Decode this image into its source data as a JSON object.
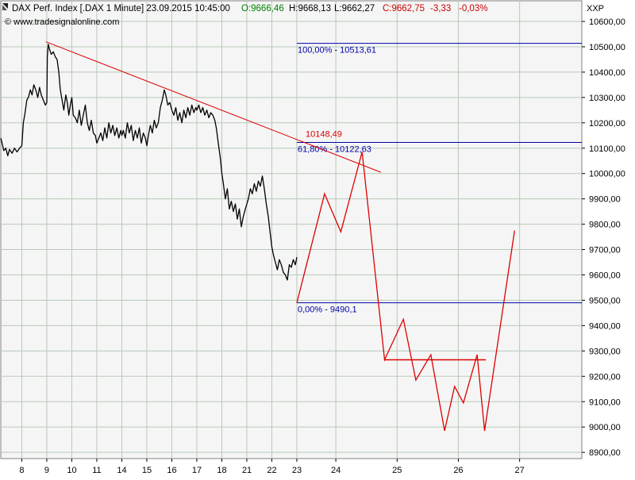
{
  "header": {
    "icon": "triangle-expand-icon",
    "name": "DAX Perf. Index [.DAX  1 Minute] 23.09.2015 10:45:00",
    "open": "O:9666,46",
    "high": "H:9668,13",
    "low": "L:9662,27",
    "close": "C:9662,75",
    "change": "-3,33",
    "change_pct": "-0,03%",
    "symbol": "XXP",
    "watermark": "© www.tradesignalonline.com"
  },
  "colors": {
    "panel_bg": "#f5f5f5",
    "grid": "#b9c9b9",
    "price": "#000000",
    "trendline": "#dd0000",
    "fib": "#0000aa",
    "header_green": "#008000",
    "header_red": "#cc0000"
  },
  "chart_data": {
    "type": "line",
    "title": "DAX Perf. Index [.DAX  1 Minute]",
    "ylim": [
      8830,
      10620
    ],
    "y_ticks": [
      "10600,00",
      "10500,00",
      "10400,00",
      "10300,00",
      "10200,00",
      "10100,00",
      "10000,00",
      "9900,00",
      "9800,00",
      "9700,00",
      "9600,00",
      "9500,00",
      "9400,00",
      "9300,00",
      "9200,00",
      "9100,00",
      "9000,00",
      "8900,00"
    ],
    "x_ticks": [
      {
        "label": "8",
        "slot": 0.84
      },
      {
        "label": "9",
        "slot": 1.84
      },
      {
        "label": "10",
        "slot": 2.84
      },
      {
        "label": "11",
        "slot": 3.84
      },
      {
        "label": "14",
        "slot": 4.84
      },
      {
        "label": "15",
        "slot": 5.84
      },
      {
        "label": "16",
        "slot": 6.84
      },
      {
        "label": "17",
        "slot": 7.84
      },
      {
        "label": "18",
        "slot": 8.84
      },
      {
        "label": "21",
        "slot": 9.84
      },
      {
        "label": "22",
        "slot": 10.84
      },
      {
        "label": "23",
        "slot": 11.84
      },
      {
        "label": "24",
        "slot": 13.4
      },
      {
        "label": "25",
        "slot": 15.85
      },
      {
        "label": "26",
        "slot": 18.3
      },
      {
        "label": "27",
        "slot": 20.75
      }
    ],
    "price_series": {
      "name": "DAX",
      "points": [
        [
          0.0,
          10140
        ],
        [
          0.05,
          10120
        ],
        [
          0.12,
          10090
        ],
        [
          0.2,
          10100
        ],
        [
          0.28,
          10070
        ],
        [
          0.35,
          10095
        ],
        [
          0.45,
          10080
        ],
        [
          0.55,
          10100
        ],
        [
          0.65,
          10085
        ],
        [
          0.75,
          10100
        ],
        [
          0.84,
          10110
        ],
        [
          0.9,
          10200
        ],
        [
          0.97,
          10240
        ],
        [
          1.04,
          10290
        ],
        [
          1.1,
          10300
        ],
        [
          1.18,
          10330
        ],
        [
          1.25,
          10310
        ],
        [
          1.32,
          10350
        ],
        [
          1.4,
          10330
        ],
        [
          1.48,
          10300
        ],
        [
          1.55,
          10340
        ],
        [
          1.62,
          10310
        ],
        [
          1.7,
          10290
        ],
        [
          1.78,
          10270
        ],
        [
          1.84,
          10280
        ],
        [
          1.86,
          10460
        ],
        [
          1.9,
          10510
        ],
        [
          1.95,
          10490
        ],
        [
          2.02,
          10470
        ],
        [
          2.1,
          10480
        ],
        [
          2.18,
          10460
        ],
        [
          2.25,
          10450
        ],
        [
          2.32,
          10400
        ],
        [
          2.38,
          10330
        ],
        [
          2.45,
          10290
        ],
        [
          2.52,
          10250
        ],
        [
          2.6,
          10310
        ],
        [
          2.66,
          10280
        ],
        [
          2.72,
          10230
        ],
        [
          2.78,
          10270
        ],
        [
          2.84,
          10300
        ],
        [
          2.9,
          10230
        ],
        [
          2.98,
          10220
        ],
        [
          3.06,
          10200
        ],
        [
          3.14,
          10250
        ],
        [
          3.22,
          10190
        ],
        [
          3.3,
          10230
        ],
        [
          3.38,
          10270
        ],
        [
          3.46,
          10200
        ],
        [
          3.54,
          10170
        ],
        [
          3.62,
          10210
        ],
        [
          3.7,
          10160
        ],
        [
          3.78,
          10150
        ],
        [
          3.84,
          10120
        ],
        [
          3.92,
          10140
        ],
        [
          4.0,
          10160
        ],
        [
          4.08,
          10130
        ],
        [
          4.16,
          10180
        ],
        [
          4.24,
          10140
        ],
        [
          4.32,
          10200
        ],
        [
          4.4,
          10160
        ],
        [
          4.48,
          10190
        ],
        [
          4.56,
          10150
        ],
        [
          4.64,
          10180
        ],
        [
          4.72,
          10140
        ],
        [
          4.8,
          10170
        ],
        [
          4.84,
          10150
        ],
        [
          4.9,
          10170
        ],
        [
          4.98,
          10140
        ],
        [
          5.06,
          10200
        ],
        [
          5.14,
          10160
        ],
        [
          5.22,
          10190
        ],
        [
          5.3,
          10130
        ],
        [
          5.38,
          10170
        ],
        [
          5.46,
          10140
        ],
        [
          5.54,
          10180
        ],
        [
          5.62,
          10120
        ],
        [
          5.7,
          10160
        ],
        [
          5.78,
          10140
        ],
        [
          5.84,
          10110
        ],
        [
          5.9,
          10150
        ],
        [
          5.98,
          10190
        ],
        [
          6.06,
          10160
        ],
        [
          6.14,
          10210
        ],
        [
          6.22,
          10180
        ],
        [
          6.3,
          10200
        ],
        [
          6.38,
          10260
        ],
        [
          6.46,
          10290
        ],
        [
          6.54,
          10330
        ],
        [
          6.6,
          10310
        ],
        [
          6.68,
          10270
        ],
        [
          6.76,
          10280
        ],
        [
          6.84,
          10250
        ],
        [
          6.92,
          10230
        ],
        [
          7.0,
          10260
        ],
        [
          7.08,
          10210
        ],
        [
          7.16,
          10240
        ],
        [
          7.24,
          10200
        ],
        [
          7.32,
          10250
        ],
        [
          7.4,
          10220
        ],
        [
          7.48,
          10260
        ],
        [
          7.56,
          10230
        ],
        [
          7.64,
          10270
        ],
        [
          7.72,
          10240
        ],
        [
          7.8,
          10260
        ],
        [
          7.84,
          10250
        ],
        [
          7.92,
          10270
        ],
        [
          8.0,
          10240
        ],
        [
          8.08,
          10260
        ],
        [
          8.16,
          10230
        ],
        [
          8.24,
          10250
        ],
        [
          8.32,
          10220
        ],
        [
          8.4,
          10240
        ],
        [
          8.48,
          10230
        ],
        [
          8.56,
          10210
        ],
        [
          8.62,
          10180
        ],
        [
          8.7,
          10120
        ],
        [
          8.78,
          10060
        ],
        [
          8.84,
          10000
        ],
        [
          8.9,
          9960
        ],
        [
          8.98,
          9900
        ],
        [
          9.06,
          9940
        ],
        [
          9.14,
          9860
        ],
        [
          9.22,
          9890
        ],
        [
          9.3,
          9850
        ],
        [
          9.38,
          9880
        ],
        [
          9.46,
          9820
        ],
        [
          9.54,
          9860
        ],
        [
          9.62,
          9790
        ],
        [
          9.7,
          9830
        ],
        [
          9.78,
          9860
        ],
        [
          9.84,
          9880
        ],
        [
          9.9,
          9900
        ],
        [
          9.98,
          9940
        ],
        [
          10.06,
          9920
        ],
        [
          10.14,
          9960
        ],
        [
          10.22,
          9930
        ],
        [
          10.3,
          9970
        ],
        [
          10.38,
          9950
        ],
        [
          10.46,
          9990
        ],
        [
          10.54,
          9940
        ],
        [
          10.62,
          9880
        ],
        [
          10.7,
          9830
        ],
        [
          10.78,
          9760
        ],
        [
          10.84,
          9710
        ],
        [
          10.9,
          9680
        ],
        [
          10.98,
          9650
        ],
        [
          11.06,
          9620
        ],
        [
          11.14,
          9660
        ],
        [
          11.22,
          9640
        ],
        [
          11.3,
          9610
        ],
        [
          11.38,
          9600
        ],
        [
          11.46,
          9580
        ],
        [
          11.54,
          9640
        ],
        [
          11.62,
          9630
        ],
        [
          11.7,
          9660
        ],
        [
          11.78,
          9640
        ],
        [
          11.84,
          9670
        ]
      ]
    },
    "forecast_series": {
      "name": "forecast",
      "points": [
        [
          11.84,
          9490
        ],
        [
          12.95,
          9920
        ],
        [
          13.6,
          9770
        ],
        [
          14.45,
          10085
        ],
        [
          15.35,
          9265
        ],
        [
          16.1,
          9425
        ],
        [
          16.6,
          9185
        ],
        [
          17.2,
          9285
        ],
        [
          17.75,
          8985
        ],
        [
          18.15,
          9160
        ],
        [
          18.5,
          9095
        ],
        [
          19.05,
          9285
        ],
        [
          19.35,
          8985
        ],
        [
          20.55,
          9775
        ]
      ]
    },
    "trendline": {
      "from": [
        1.8,
        10520
      ],
      "to": [
        15.2,
        10005
      ]
    },
    "horizontal_segment": {
      "from_x": 15.35,
      "to_x": 19.4,
      "y": 9265
    },
    "annotations": [
      {
        "name": "trend-value-label",
        "text": "10148,49",
        "x": 12.0,
        "y": 10148.49,
        "color": "red"
      }
    ],
    "fib_levels": [
      {
        "label": "100,00% - 10513,61",
        "value": 10513.61
      },
      {
        "label": "61,80% - 10122,63",
        "value": 10122.63
      },
      {
        "label": "0,00% - 9490,1",
        "value": 9490.1
      }
    ],
    "fib_start_slot": 11.84,
    "grid": true
  }
}
